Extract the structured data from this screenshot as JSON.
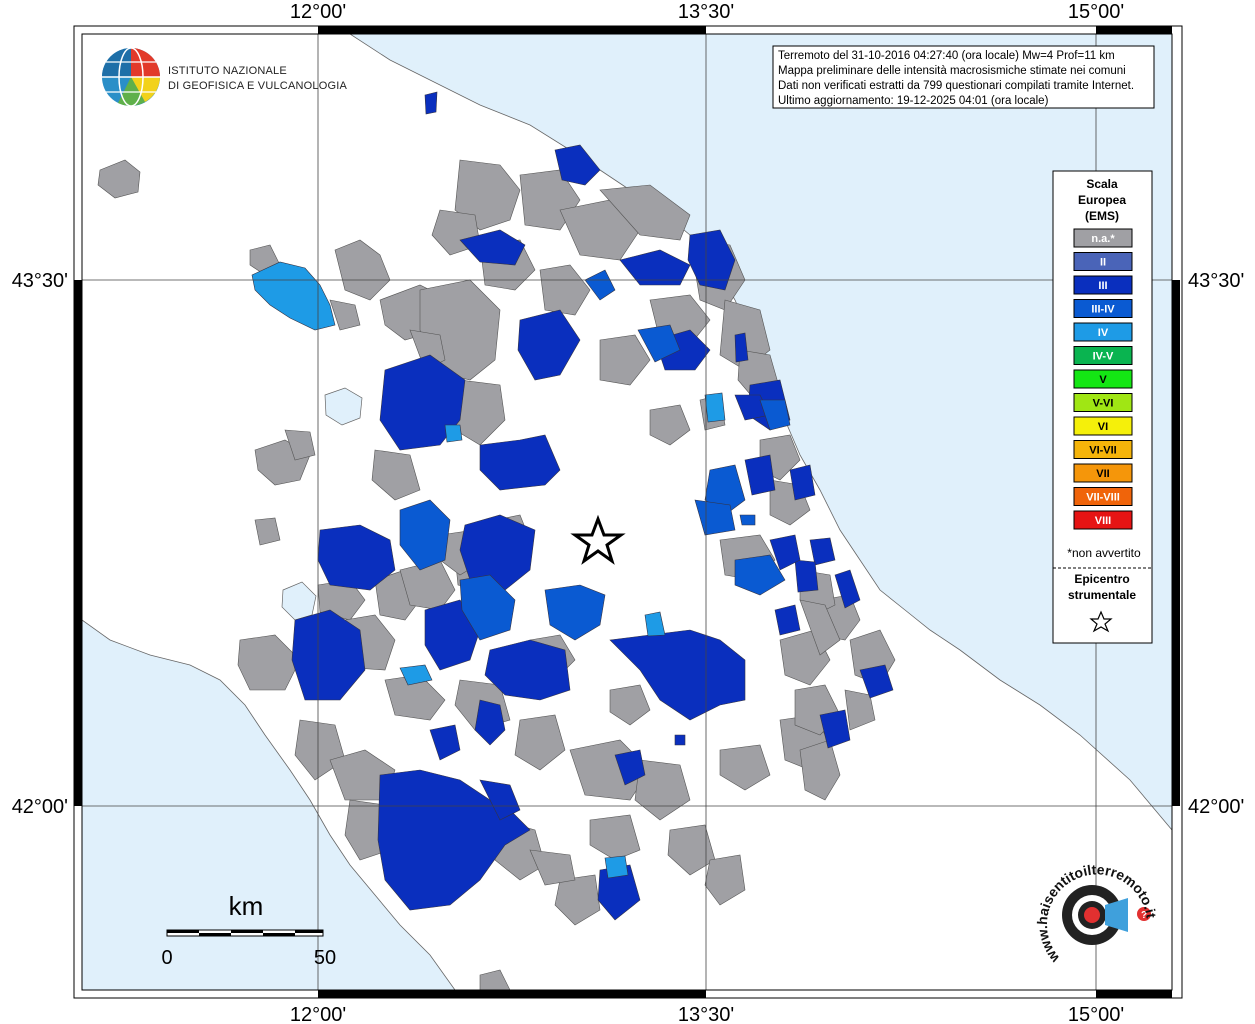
{
  "institute": {
    "line1": "ISTITUTO NAZIONALE",
    "line2": "DI GEOFISICA E VULCANOLOGIA"
  },
  "info_box": {
    "line1": "Terremoto del 31-10-2016 04:27:40 (ora locale) Mw=4 Prof=11 km",
    "line2": "Mappa preliminare delle intensità macrosismiche stimate nei comuni",
    "line3": "Dati non verificati estratti da 799 questionari compilati tramite Internet.",
    "line4": "Ultimo aggiornamento: 19-12-2025 04:01 (ora locale)"
  },
  "axes": {
    "top": [
      "12°00'",
      "13°30'",
      "15°00'"
    ],
    "bottom": [
      "12°00'",
      "13°30'",
      "15°00'"
    ],
    "left": [
      "43°30'",
      "42°00'"
    ],
    "right": [
      "43°30'",
      "42°00'"
    ]
  },
  "legend": {
    "title1": "Scala",
    "title2": "Europea",
    "title3": "(EMS)",
    "classes": [
      {
        "label": "n.a.*",
        "color": "#a0a0a4"
      },
      {
        "label": "II",
        "color": "#4a64b8"
      },
      {
        "label": "III",
        "color": "#0a2fbe"
      },
      {
        "label": "III-IV",
        "color": "#0a5ad2"
      },
      {
        "label": "IV",
        "color": "#1e9be6"
      },
      {
        "label": "IV-V",
        "color": "#0ab450"
      },
      {
        "label": "V",
        "color": "#14e614"
      },
      {
        "label": "V-VI",
        "color": "#a0e614"
      },
      {
        "label": "VI",
        "color": "#f5f00a"
      },
      {
        "label": "VI-VII",
        "color": "#f5b40a"
      },
      {
        "label": "VII",
        "color": "#f5960a"
      },
      {
        "label": "VII-VIII",
        "color": "#f0640a"
      },
      {
        "label": "VIII",
        "color": "#e61414"
      }
    ],
    "note": "*non avvertito",
    "epicentre1": "Epicentro",
    "epicentre2": "strumentale"
  },
  "scale_bar": {
    "unit": "km",
    "min_label": "0",
    "max_label": "50"
  },
  "haisentito": {
    "text": "www.haisentitoilterremoto.it"
  },
  "colors": {
    "sea": "#e0f0fb",
    "land": "#ffffff",
    "na": "#a0a0a4",
    "III": "#0a2fbe",
    "III_IV": "#0a5ad2",
    "IV": "#1e9be6"
  }
}
